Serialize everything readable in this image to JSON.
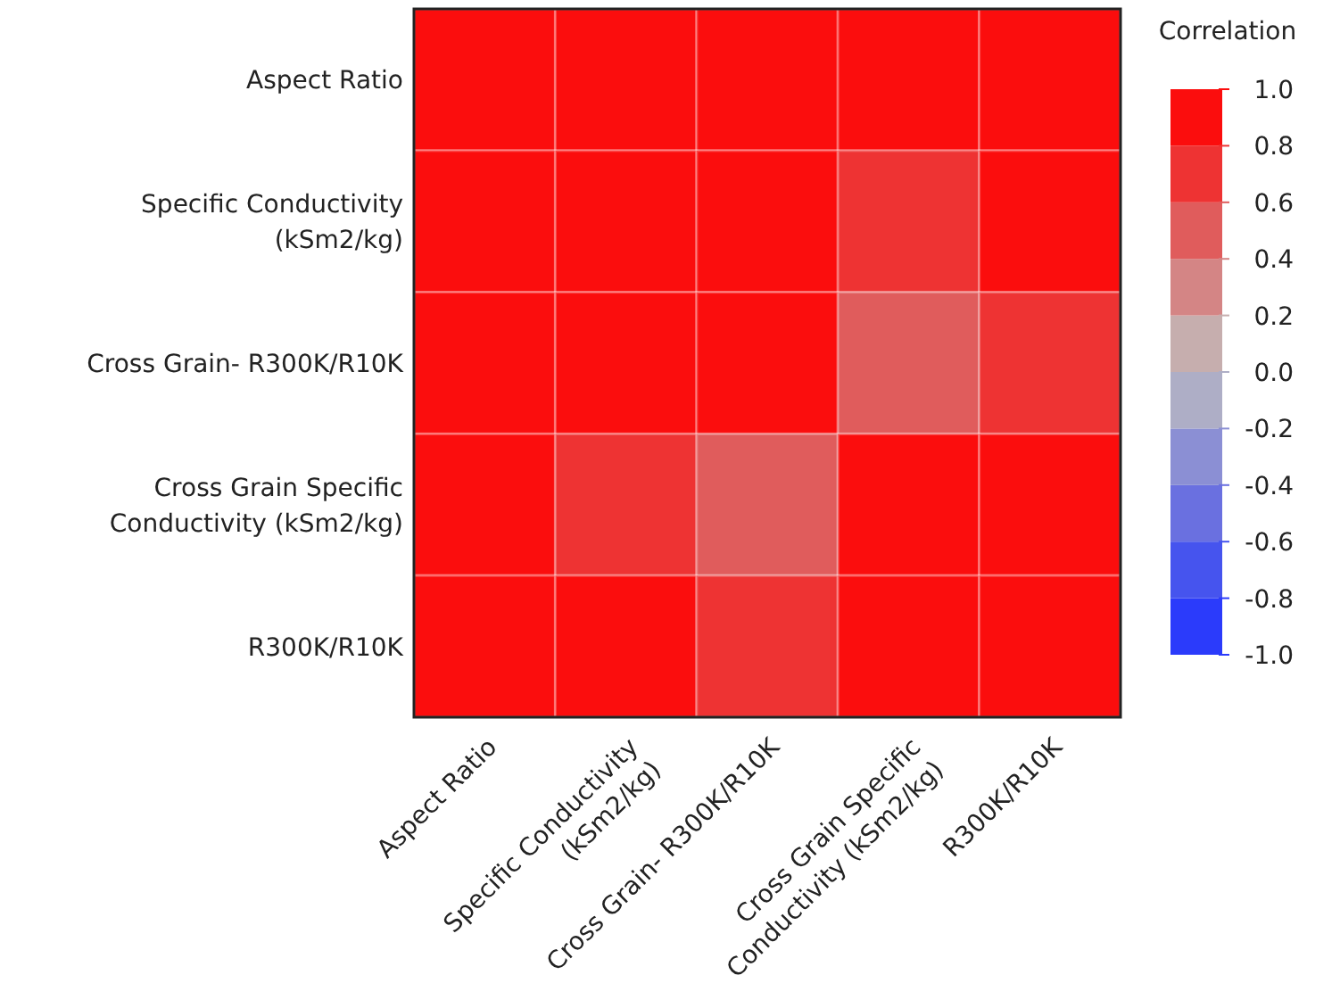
{
  "chart_data": {
    "type": "heatmap",
    "categories": [
      "Aspect Ratio",
      "Specific Conductivity (kSm2/kg)",
      "Cross Grain- R300K/R10K",
      "Cross Grain Specific Conductivity (kSm2/kg)",
      "R300K/R10K"
    ],
    "y_categories": [
      "Aspect Ratio",
      "Specific Conductivity (kSm2/kg)",
      "Cross Grain- R300K/R10K",
      "Cross Grain Specific Conductivity (kSm2/kg)",
      "R300K/R10K"
    ],
    "cells": [
      [
        1,
        0.9,
        0.9,
        0.9,
        0.9
      ],
      [
        0.9,
        1,
        0.9,
        0.7,
        0.9
      ],
      [
        0.9,
        0.9,
        1,
        0.5,
        0.7
      ],
      [
        0.9,
        0.7,
        0.5,
        1,
        0.9
      ],
      [
        0.9,
        0.9,
        0.7,
        0.9,
        1
      ]
    ],
    "legend_title": "Correlation",
    "clim": [
      -1,
      1
    ],
    "cticks": [
      {
        "value": 1,
        "label": "1.0"
      },
      {
        "value": 0.8,
        "label": "0.8"
      },
      {
        "value": 0.6,
        "label": "0.6"
      },
      {
        "value": 0.4,
        "label": "0.4"
      },
      {
        "value": 0.2,
        "label": "0.2"
      },
      {
        "value": 0,
        "label": "0.0"
      },
      {
        "value": -0.2,
        "label": "-0.2"
      },
      {
        "value": -0.4,
        "label": "-0.4"
      },
      {
        "value": -0.6,
        "label": "-0.6"
      },
      {
        "value": -0.8,
        "label": "-0.8"
      },
      {
        "value": -1,
        "label": "-1.0"
      }
    ]
  }
}
